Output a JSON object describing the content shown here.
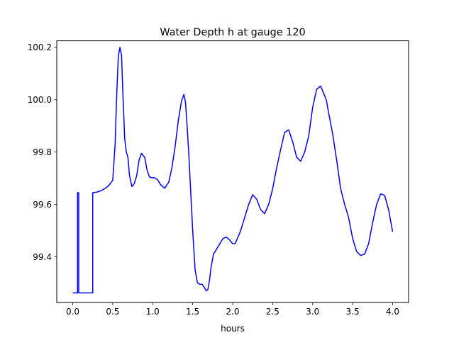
{
  "chart_data": {
    "type": "line",
    "title": "Water Depth h at gauge 120",
    "xlabel": "hours",
    "ylabel": "",
    "xlim": [
      -0.2,
      4.2
    ],
    "ylim": [
      99.225,
      100.225
    ],
    "xticks": [
      0.0,
      0.5,
      1.0,
      1.5,
      2.0,
      2.5,
      3.0,
      3.5,
      4.0
    ],
    "xtick_labels": [
      "0.0",
      "0.5",
      "1.0",
      "1.5",
      "2.0",
      "2.5",
      "3.0",
      "3.5",
      "4.0"
    ],
    "yticks": [
      99.4,
      99.6,
      99.8,
      100.0,
      100.2
    ],
    "ytick_labels": [
      "99.4",
      "99.6",
      "99.8",
      "100.0",
      "100.2"
    ],
    "grid": false,
    "series": [
      {
        "color": "#0000ff",
        "x": [
          0.0,
          0.06,
          0.06,
          0.065,
          0.07,
          0.075,
          0.075,
          0.085,
          0.085,
          0.24,
          0.25,
          0.25,
          0.3,
          0.35,
          0.4,
          0.45,
          0.5,
          0.53,
          0.55,
          0.57,
          0.59,
          0.61,
          0.63,
          0.65,
          0.67,
          0.69,
          0.71,
          0.74,
          0.77,
          0.8,
          0.83,
          0.86,
          0.9,
          0.93,
          0.96,
          0.99,
          1.02,
          1.06,
          1.1,
          1.15,
          1.2,
          1.24,
          1.28,
          1.32,
          1.36,
          1.39,
          1.41,
          1.43,
          1.45,
          1.47,
          1.5,
          1.53,
          1.56,
          1.59,
          1.62,
          1.65,
          1.67,
          1.69,
          1.71,
          1.73,
          1.76,
          1.8,
          1.84,
          1.88,
          1.92,
          1.96,
          2.0,
          2.03,
          2.06,
          2.1,
          2.15,
          2.2,
          2.25,
          2.3,
          2.35,
          2.4,
          2.45,
          2.5,
          2.55,
          2.6,
          2.65,
          2.7,
          2.75,
          2.8,
          2.85,
          2.9,
          2.95,
          3.0,
          3.05,
          3.1,
          3.13,
          3.17,
          3.2,
          3.25,
          3.3,
          3.35,
          3.4,
          3.45,
          3.5,
          3.55,
          3.6,
          3.65,
          3.7,
          3.75,
          3.8,
          3.85,
          3.9,
          3.95,
          4.0
        ],
        "y": [
          99.262,
          99.262,
          99.645,
          99.645,
          99.645,
          99.645,
          99.262,
          99.262,
          99.262,
          99.262,
          99.262,
          99.645,
          99.647,
          99.652,
          99.66,
          99.672,
          99.692,
          99.83,
          100.02,
          100.165,
          100.2,
          100.17,
          100.0,
          99.85,
          99.8,
          99.78,
          99.71,
          99.668,
          99.68,
          99.71,
          99.77,
          99.795,
          99.78,
          99.73,
          99.705,
          99.702,
          99.702,
          99.695,
          99.675,
          99.662,
          99.685,
          99.74,
          99.82,
          99.92,
          99.995,
          100.02,
          99.99,
          99.9,
          99.8,
          99.68,
          99.5,
          99.35,
          99.3,
          99.295,
          99.295,
          99.28,
          99.27,
          99.275,
          99.31,
          99.36,
          99.41,
          99.43,
          99.45,
          99.47,
          99.475,
          99.465,
          99.45,
          99.45,
          99.47,
          99.5,
          99.55,
          99.6,
          99.637,
          99.62,
          99.58,
          99.565,
          99.6,
          99.66,
          99.74,
          99.81,
          99.875,
          99.885,
          99.84,
          99.78,
          99.765,
          99.8,
          99.86,
          99.97,
          100.04,
          100.052,
          100.03,
          100.0,
          99.95,
          99.87,
          99.77,
          99.66,
          99.6,
          99.55,
          99.47,
          99.42,
          99.405,
          99.41,
          99.45,
          99.53,
          99.6,
          99.64,
          99.635,
          99.58,
          99.495
        ]
      }
    ]
  }
}
